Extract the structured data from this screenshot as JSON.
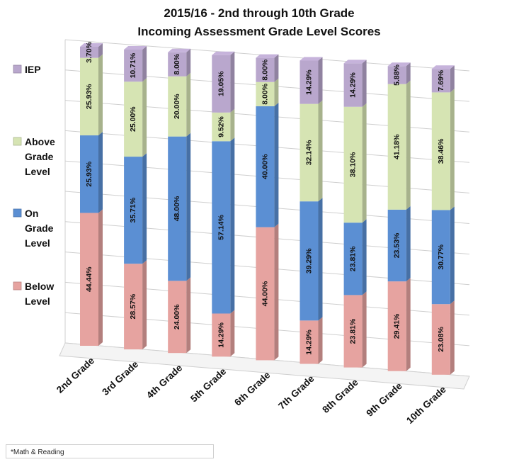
{
  "chart_data": {
    "type": "bar",
    "stacked": true,
    "orientation": "vertical-3d",
    "title": "2015/16 - 2nd through 10th Grade",
    "subtitle": "Incoming Assessment Grade Level Scores",
    "categories": [
      "2nd Grade",
      "3rd Grade",
      "4th Grade",
      "5th Grade",
      "6th Grade",
      "7th Grade",
      "8th Grade",
      "9th Grade",
      "10th Grade"
    ],
    "series": [
      {
        "name": "Below Level",
        "color": "#e6a3a0",
        "values": [
          44.44,
          28.57,
          24.0,
          14.29,
          44.0,
          14.29,
          23.81,
          29.41,
          23.08
        ],
        "labels": [
          "44.44%",
          "28.57%",
          "24.00%",
          "14.29%",
          "44.00%",
          "14.29%",
          "23.81%",
          "29.41%",
          "23.08%"
        ]
      },
      {
        "name": "On Grade Level",
        "color": "#5b8fd3",
        "values": [
          25.93,
          35.71,
          48.0,
          57.14,
          40.0,
          39.29,
          23.81,
          23.53,
          30.77
        ],
        "labels": [
          "25.93%",
          "35.71%",
          "48.00%",
          "57.14%",
          "40.00%",
          "39.29%",
          "23.81%",
          "23.53%",
          "30.77%"
        ]
      },
      {
        "name": "Above Grade Level",
        "color": "#d6e4b3",
        "values": [
          25.93,
          25.0,
          20.0,
          9.52,
          8.0,
          32.14,
          38.1,
          41.18,
          38.46
        ],
        "labels": [
          "25.93%",
          "25.00%",
          "20.00%",
          "9.52%",
          "8.00%",
          "32.14%",
          "38.10%",
          "41.18%",
          "38.46%"
        ]
      },
      {
        "name": "IEP",
        "color": "#b9a7cd",
        "values": [
          3.7,
          10.71,
          8.0,
          19.05,
          8.0,
          14.29,
          14.29,
          5.88,
          7.69
        ],
        "labels": [
          "3.70%",
          "10.71%",
          "8.00%",
          "19.05%",
          "8.00%",
          "14.29%",
          "14.29%",
          "5.88%",
          "7.69%"
        ]
      }
    ],
    "legend": {
      "position": "left",
      "items": [
        {
          "lines": [
            "IEP"
          ],
          "color": "#b9a7cd"
        },
        {
          "lines": [
            "Above",
            "Grade",
            "Level"
          ],
          "color": "#d6e4b3"
        },
        {
          "lines": [
            "On",
            "Grade",
            "Level"
          ],
          "color": "#5b8fd3"
        },
        {
          "lines": [
            "Below",
            "Level"
          ],
          "color": "#e6a3a0"
        }
      ]
    },
    "ylim": [
      0,
      100
    ],
    "grid": true,
    "xlabel": "",
    "ylabel": ""
  },
  "footnote": "*Math & Reading"
}
